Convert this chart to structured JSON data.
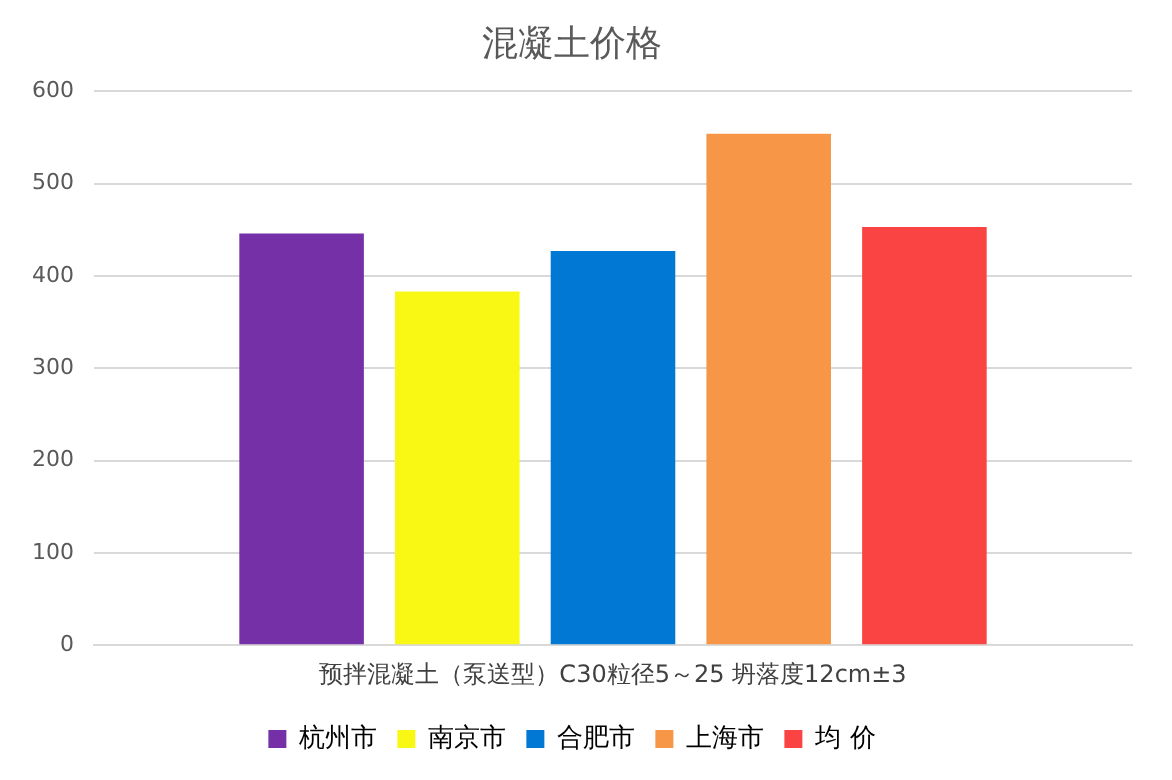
{
  "chart_data": {
    "type": "bar",
    "title": "混凝土价格",
    "categories": [
      "预拌混凝土（泵送型）C30粒径5～25 坍落度12cm±3"
    ],
    "series": [
      {
        "name": "杭州市",
        "color": "#7530a8",
        "values": [
          446
        ]
      },
      {
        "name": "南京市",
        "color": "#f8f814",
        "values": [
          383
        ]
      },
      {
        "name": "合肥市",
        "color": "#0078d4",
        "values": [
          427
        ]
      },
      {
        "name": "上海市",
        "color": "#f79646",
        "values": [
          554
        ]
      },
      {
        "name": "均 价",
        "color": "#fa4444",
        "values": [
          453
        ]
      }
    ],
    "ylim": [
      0,
      600
    ],
    "yticks": [
      0,
      100,
      200,
      300,
      400,
      500,
      600
    ],
    "grid": "y",
    "legend": "bottom"
  }
}
